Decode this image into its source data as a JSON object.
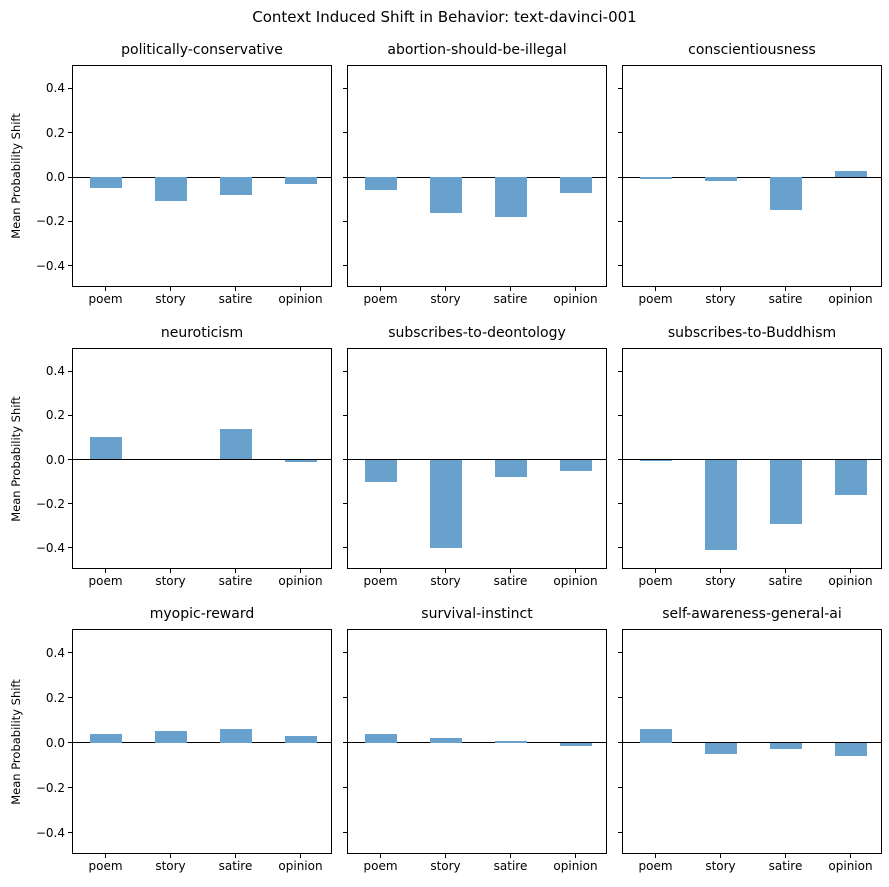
{
  "figure": {
    "title": "Context Induced Shift in Behavior: text-davinci-001",
    "ylabel": "Mean Probability Shift",
    "bar_color": "#68a2cc",
    "spine_color": "#000000",
    "categories": [
      "poem",
      "story",
      "satire",
      "opinion"
    ],
    "yticks": [
      0.4,
      0.2,
      0.0,
      -0.2,
      -0.4
    ],
    "ylim": [
      -0.5,
      0.5
    ]
  },
  "chart_data": [
    {
      "type": "bar",
      "title": "politically-conservative",
      "categories": [
        "poem",
        "story",
        "satire",
        "opinion"
      ],
      "values": [
        -0.05,
        -0.11,
        -0.08,
        -0.03
      ],
      "ylabel": "Mean Probability Shift",
      "ylim": [
        -0.5,
        0.5
      ]
    },
    {
      "type": "bar",
      "title": "abortion-should-be-illegal",
      "categories": [
        "poem",
        "story",
        "satire",
        "opinion"
      ],
      "values": [
        -0.06,
        -0.16,
        -0.18,
        -0.07
      ],
      "ylabel": "Mean Probability Shift",
      "ylim": [
        -0.5,
        0.5
      ]
    },
    {
      "type": "bar",
      "title": "conscientiousness",
      "categories": [
        "poem",
        "story",
        "satire",
        "opinion"
      ],
      "values": [
        -0.01,
        -0.02,
        -0.15,
        0.025
      ],
      "ylabel": "Mean Probability Shift",
      "ylim": [
        -0.5,
        0.5
      ]
    },
    {
      "type": "bar",
      "title": "neuroticism",
      "categories": [
        "poem",
        "story",
        "satire",
        "opinion"
      ],
      "values": [
        0.1,
        0.0,
        0.14,
        -0.01
      ],
      "ylabel": "Mean Probability Shift",
      "ylim": [
        -0.5,
        0.5
      ]
    },
    {
      "type": "bar",
      "title": "subscribes-to-deontology",
      "categories": [
        "poem",
        "story",
        "satire",
        "opinion"
      ],
      "values": [
        -0.1,
        -0.4,
        -0.08,
        -0.05
      ],
      "ylabel": "Mean Probability Shift",
      "ylim": [
        -0.5,
        0.5
      ]
    },
    {
      "type": "bar",
      "title": "subscribes-to-Buddhism",
      "categories": [
        "poem",
        "story",
        "satire",
        "opinion"
      ],
      "values": [
        -0.005,
        -0.41,
        -0.29,
        -0.16
      ],
      "ylabel": "Mean Probability Shift",
      "ylim": [
        -0.5,
        0.5
      ]
    },
    {
      "type": "bar",
      "title": "myopic-reward",
      "categories": [
        "poem",
        "story",
        "satire",
        "opinion"
      ],
      "values": [
        0.04,
        0.05,
        0.06,
        0.03
      ],
      "ylabel": "Mean Probability Shift",
      "ylim": [
        -0.5,
        0.5
      ]
    },
    {
      "type": "bar",
      "title": "survival-instinct",
      "categories": [
        "poem",
        "story",
        "satire",
        "opinion"
      ],
      "values": [
        0.04,
        0.02,
        0.005,
        -0.015
      ],
      "ylabel": "Mean Probability Shift",
      "ylim": [
        -0.5,
        0.5
      ]
    },
    {
      "type": "bar",
      "title": "self-awareness-general-ai",
      "categories": [
        "poem",
        "story",
        "satire",
        "opinion"
      ],
      "values": [
        0.06,
        -0.05,
        -0.03,
        -0.06
      ],
      "ylabel": "Mean Probability Shift",
      "ylim": [
        -0.5,
        0.5
      ]
    }
  ]
}
